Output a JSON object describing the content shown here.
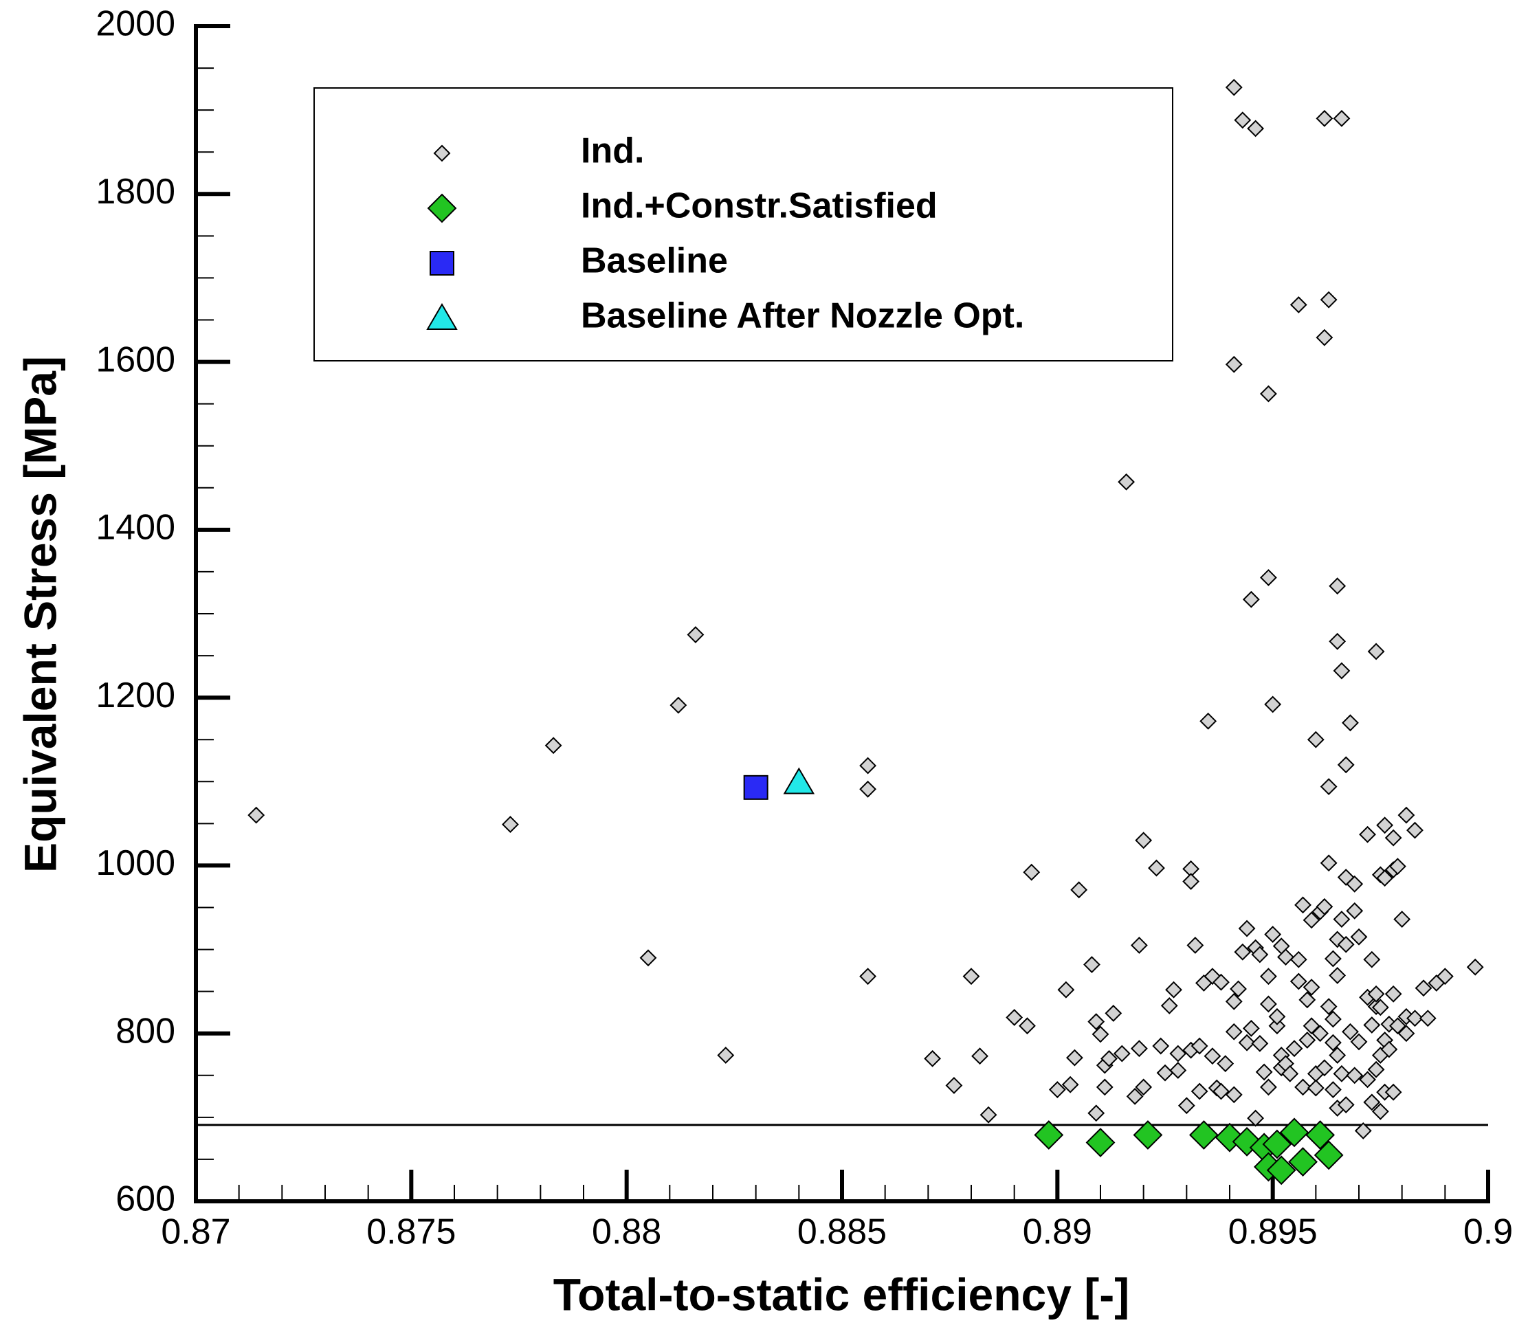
{
  "chart_data": {
    "type": "scatter",
    "xlabel": "Total-to-static efficiency  [-]",
    "ylabel": "Equivalent Stress  [MPa]",
    "xlim": [
      0.87,
      0.9
    ],
    "ylim": [
      600,
      2000
    ],
    "xticks": [
      0.87,
      0.875,
      0.88,
      0.885,
      0.89,
      0.895,
      0.9
    ],
    "yticks": [
      600,
      800,
      1000,
      1200,
      1400,
      1600,
      1800,
      2000
    ],
    "xminorticks": [
      0.871,
      0.872,
      0.873,
      0.874,
      0.876,
      0.877,
      0.878,
      0.879,
      0.881,
      0.882,
      0.883,
      0.884,
      0.886,
      0.887,
      0.888,
      0.889,
      0.891,
      0.892,
      0.893,
      0.894,
      0.896,
      0.897,
      0.898,
      0.899
    ],
    "yminorticks": [
      650,
      700,
      750,
      850,
      900,
      950,
      1050,
      1100,
      1150,
      1250,
      1300,
      1350,
      1450,
      1500,
      1550,
      1650,
      1700,
      1750,
      1850,
      1900,
      1950
    ],
    "hlines": [
      691
    ],
    "legend": "top-left",
    "series": [
      {
        "name": "Ind.",
        "color": "#d3d3d3",
        "marker": "diamond",
        "x": [
          0.8714,
          0.8773,
          0.8783,
          0.8805,
          0.8812,
          0.8816,
          0.8823,
          0.8856,
          0.8856,
          0.8856,
          0.8871,
          0.8876,
          0.888,
          0.8882,
          0.8884,
          0.889,
          0.8893,
          0.8894,
          0.89,
          0.8902,
          0.8903,
          0.8904,
          0.8905,
          0.8908,
          0.8909,
          0.8909,
          0.891,
          0.8911,
          0.8911,
          0.8912,
          0.8913,
          0.8915,
          0.8916,
          0.8918,
          0.8919,
          0.8919,
          0.892,
          0.892,
          0.8923,
          0.8924,
          0.8925,
          0.8926,
          0.8927,
          0.8928,
          0.8928,
          0.893,
          0.8931,
          0.8931,
          0.8931,
          0.8932,
          0.8933,
          0.8933,
          0.8934,
          0.8935,
          0.8936,
          0.8936,
          0.8937,
          0.8938,
          0.8938,
          0.8939,
          0.8941,
          0.8941,
          0.8941,
          0.8941,
          0.8941,
          0.8942,
          0.8943,
          0.8943,
          0.8944,
          0.8944,
          0.8945,
          0.8945,
          0.8946,
          0.8946,
          0.8946,
          0.8947,
          0.8947,
          0.8948,
          0.8949,
          0.8949,
          0.8949,
          0.8949,
          0.8949,
          0.895,
          0.895,
          0.8951,
          0.8951,
          0.8952,
          0.8952,
          0.8952,
          0.8953,
          0.8953,
          0.8954,
          0.8955,
          0.8956,
          0.8956,
          0.8956,
          0.8957,
          0.8957,
          0.8958,
          0.8958,
          0.8959,
          0.8959,
          0.8959,
          0.896,
          0.896,
          0.896,
          0.8961,
          0.8961,
          0.8962,
          0.8962,
          0.8962,
          0.8962,
          0.8963,
          0.8963,
          0.8963,
          0.8963,
          0.8964,
          0.8964,
          0.8964,
          0.8964,
          0.8965,
          0.8965,
          0.8965,
          0.8965,
          0.8965,
          0.8965,
          0.8966,
          0.8966,
          0.8966,
          0.8966,
          0.8967,
          0.8967,
          0.8967,
          0.8967,
          0.8968,
          0.8968,
          0.8969,
          0.8969,
          0.8969,
          0.897,
          0.897,
          0.8971,
          0.8972,
          0.8972,
          0.8972,
          0.8973,
          0.8973,
          0.8973,
          0.8974,
          0.8974,
          0.8974,
          0.8974,
          0.8975,
          0.8975,
          0.8975,
          0.8975,
          0.8976,
          0.8976,
          0.8976,
          0.8976,
          0.8977,
          0.8977,
          0.8978,
          0.8978,
          0.8978,
          0.8979,
          0.8979,
          0.898,
          0.8981,
          0.8981,
          0.8981,
          0.8983,
          0.8983,
          0.8985,
          0.8986,
          0.8988,
          0.899,
          0.8997,
          0.8978
        ],
        "values": [
          1060,
          1049,
          1143,
          890,
          1191,
          1275,
          774,
          1119,
          1091,
          868,
          770,
          738,
          868,
          773,
          703,
          819,
          809,
          992,
          733,
          852,
          739,
          771,
          971,
          882,
          705,
          814,
          799,
          762,
          736,
          770,
          824,
          776,
          1457,
          725,
          905,
          782,
          1030,
          736,
          997,
          785,
          753,
          833,
          852,
          756,
          776,
          714,
          996,
          981,
          780,
          905,
          785,
          731,
          860,
          1172,
          868,
          773,
          735,
          861,
          731,
          764,
          838,
          1927,
          1597,
          802,
          727,
          853,
          897,
          1888,
          789,
          925,
          1317,
          806,
          902,
          699,
          1878,
          788,
          894,
          754,
          868,
          835,
          1343,
          1562,
          736,
          918,
          1192,
          809,
          820,
          904,
          774,
          759,
          764,
          891,
          752,
          782,
          888,
          862,
          1668,
          736,
          953,
          840,
          792,
          935,
          855,
          809,
          752,
          735,
          1150,
          945,
          800,
          951,
          759,
          1890,
          1629,
          1003,
          832,
          1674,
          1094,
          889,
          789,
          733,
          817,
          912,
          711,
          869,
          774,
          1333,
          1267,
          752,
          936,
          1890,
          1232,
          906,
          986,
          1120,
          715,
          1170,
          802,
          750,
          978,
          946,
          915,
          790,
          684,
          843,
          1037,
          745,
          718,
          888,
          810,
          832,
          757,
          1255,
          847,
          707,
          989,
          774,
          831,
          792,
          730,
          985,
          1048,
          811,
          781,
          1033,
          730,
          995,
          999,
          809,
          936,
          1060,
          800,
          820,
          818,
          1042,
          854,
          818,
          860,
          868,
          879,
          847
        ]
      },
      {
        "name": "Ind.+Constr.Satisfied",
        "color": "#22c422",
        "marker": "diamond-large",
        "x": [
          0.8898,
          0.891,
          0.8921,
          0.8934,
          0.894,
          0.8944,
          0.8948,
          0.8949,
          0.8951,
          0.8952,
          0.8955,
          0.8957,
          0.8961,
          0.8963
        ],
        "values": [
          679,
          670,
          679,
          679,
          676,
          671,
          664,
          641,
          668,
          637,
          682,
          647,
          679,
          655
        ]
      },
      {
        "name": "Baseline",
        "color": "#2a2af5",
        "marker": "square",
        "x": [
          0.883
        ],
        "values": [
          1093
        ]
      },
      {
        "name": "Baseline After Nozzle Opt.",
        "color": "#22e8e8",
        "marker": "triangle",
        "x": [
          0.884
        ],
        "values": [
          1099
        ]
      }
    ]
  }
}
